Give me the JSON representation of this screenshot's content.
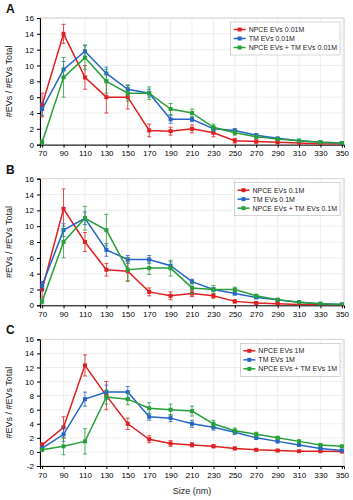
{
  "chart_data": [
    {
      "type": "line",
      "title": "A",
      "x": [
        70,
        90,
        110,
        130,
        150,
        170,
        190,
        210,
        230,
        250,
        270,
        290,
        310,
        330,
        350
      ],
      "series": [
        {
          "name": "NPCE EVs 0.01M",
          "color": "#e02020",
          "values": [
            5.0,
            14.0,
            8.5,
            6.0,
            6.0,
            1.8,
            1.7,
            2.0,
            1.5,
            0.5,
            0.4,
            0.3,
            0.2,
            0.1,
            0.1
          ],
          "errors": [
            1.5,
            1.2,
            1.5,
            2.0,
            1.5,
            0.8,
            0.5,
            0.5,
            0.5,
            0.3,
            0.2,
            0.2,
            0.1,
            0.1,
            0.05
          ]
        },
        {
          "name": "TM EVs 0.01M",
          "color": "#2565c7",
          "values": [
            4.5,
            9.5,
            11.8,
            9.0,
            7.0,
            6.5,
            3.2,
            3.2,
            2.0,
            1.8,
            1.2,
            0.8,
            0.5,
            0.3,
            0.2
          ],
          "errors": [
            0.8,
            1.0,
            0.8,
            0.8,
            0.5,
            0.5,
            0.5,
            0.3,
            0.3,
            0.2,
            0.2,
            0.1,
            0.1,
            0.1,
            0.05
          ]
        },
        {
          "name": "NPCE EVs + TM EVs 0.01M",
          "color": "#27a03a",
          "values": [
            0.3,
            8.5,
            11.0,
            8.0,
            6.5,
            6.5,
            4.5,
            4.0,
            2.2,
            1.5,
            1.0,
            0.7,
            0.5,
            0.3,
            0.2
          ],
          "errors": [
            0.3,
            2.5,
            1.5,
            1.5,
            1.0,
            0.8,
            0.7,
            0.5,
            0.4,
            0.3,
            0.2,
            0.1,
            0.1,
            0.1,
            0.05
          ]
        }
      ],
      "ylabel": "#EVs / #EVs Total",
      "xlim": [
        68,
        352
      ],
      "xticks": [
        70,
        90,
        110,
        130,
        150,
        170,
        190,
        210,
        230,
        250,
        270,
        290,
        310,
        330,
        350
      ],
      "ylim": [
        0,
        16
      ],
      "yticks": [
        0,
        2,
        4,
        6,
        8,
        10,
        12,
        14,
        16
      ],
      "grid": true,
      "legend": "upper right",
      "marker": "square"
    },
    {
      "type": "line",
      "title": "B",
      "x": [
        70,
        90,
        110,
        130,
        150,
        170,
        190,
        210,
        230,
        250,
        270,
        290,
        310,
        330,
        350
      ],
      "series": [
        {
          "name": "NPCE EVs 0.1M",
          "color": "#e02020",
          "values": [
            2.0,
            12.2,
            8.0,
            4.5,
            4.3,
            1.7,
            1.2,
            1.5,
            1.2,
            0.5,
            0.3,
            0.2,
            0.1,
            0.1,
            0.05
          ],
          "errors": [
            1.0,
            2.5,
            1.2,
            0.8,
            1.2,
            0.5,
            0.5,
            0.4,
            0.3,
            0.2,
            0.1,
            0.1,
            0.1,
            0.05,
            0.05
          ]
        },
        {
          "name": "TM EVs 0.1M",
          "color": "#2565c7",
          "values": [
            2.5,
            9.5,
            11.0,
            7.0,
            5.8,
            5.8,
            5.0,
            3.0,
            2.0,
            1.5,
            1.0,
            0.7,
            0.4,
            0.2,
            0.1
          ],
          "errors": [
            0.5,
            0.8,
            0.8,
            0.8,
            0.5,
            0.5,
            0.5,
            0.3,
            0.2,
            0.2,
            0.1,
            0.1,
            0.1,
            0.05,
            0.05
          ]
        },
        {
          "name": "NPCE EVs + TM EVs 0.1M",
          "color": "#27a03a",
          "values": [
            0.5,
            8.0,
            11.0,
            9.5,
            4.5,
            4.7,
            4.7,
            2.2,
            2.0,
            2.0,
            1.2,
            0.7,
            0.4,
            0.2,
            0.1
          ],
          "errors": [
            0.3,
            2.0,
            1.5,
            2.0,
            1.5,
            0.8,
            1.0,
            0.7,
            0.5,
            0.3,
            0.2,
            0.1,
            0.1,
            0.05,
            0.05
          ]
        }
      ],
      "ylabel": "#EVs / #EVs Total",
      "xlim": [
        68,
        352
      ],
      "xticks": [
        70,
        90,
        110,
        130,
        150,
        170,
        190,
        210,
        230,
        250,
        270,
        290,
        310,
        330,
        350
      ],
      "ylim": [
        0,
        16
      ],
      "yticks": [
        0,
        2,
        4,
        6,
        8,
        10,
        12,
        14,
        16
      ],
      "grid": true,
      "legend": "upper right",
      "marker": "square"
    },
    {
      "type": "line",
      "title": "C",
      "x": [
        70,
        90,
        110,
        130,
        150,
        170,
        190,
        210,
        230,
        250,
        270,
        290,
        310,
        330,
        350
      ],
      "series": [
        {
          "name": "NPCE EVs 1M",
          "color": "#e02020",
          "values": [
            1.0,
            3.5,
            12.3,
            8.0,
            4.0,
            1.8,
            1.2,
            1.0,
            0.8,
            0.5,
            0.3,
            0.2,
            0.1,
            0.1,
            0.05
          ],
          "errors": [
            0.3,
            1.5,
            1.5,
            2.0,
            0.8,
            0.5,
            0.4,
            0.3,
            0.2,
            0.2,
            0.1,
            0.1,
            0.05,
            0.05,
            0.05
          ]
        },
        {
          "name": "TM EVs 1M",
          "color": "#2565c7",
          "values": [
            0.5,
            2.5,
            7.5,
            8.5,
            8.5,
            5.0,
            4.8,
            4.0,
            3.5,
            2.8,
            2.0,
            1.5,
            1.0,
            0.5,
            0.2
          ],
          "errors": [
            0.3,
            1.0,
            1.0,
            1.0,
            0.8,
            0.5,
            0.5,
            0.5,
            0.4,
            0.3,
            0.2,
            0.2,
            0.1,
            0.1,
            0.05
          ]
        },
        {
          "name": "NPCE EVs + TM EVs 1M",
          "color": "#27a03a",
          "values": [
            0.3,
            0.8,
            1.5,
            7.8,
            7.5,
            6.2,
            6.0,
            5.8,
            4.0,
            3.0,
            2.5,
            2.0,
            1.5,
            1.0,
            0.8
          ],
          "errors": [
            0.2,
            1.2,
            1.8,
            1.0,
            0.8,
            0.8,
            0.8,
            0.7,
            0.5,
            0.4,
            0.3,
            0.2,
            0.2,
            0.1,
            0.1
          ]
        }
      ],
      "xlabel": "Size (nm)",
      "ylabel": "#EVs / #EVs Total",
      "xlim": [
        68,
        352
      ],
      "xticks": [
        70,
        90,
        110,
        130,
        150,
        170,
        190,
        210,
        230,
        250,
        270,
        290,
        310,
        330,
        350
      ],
      "ylim": [
        -2,
        16
      ],
      "yticks": [
        -2,
        0,
        2,
        4,
        6,
        8,
        10,
        12,
        14,
        16
      ],
      "grid": true,
      "legend": "upper right",
      "marker": "square"
    }
  ]
}
